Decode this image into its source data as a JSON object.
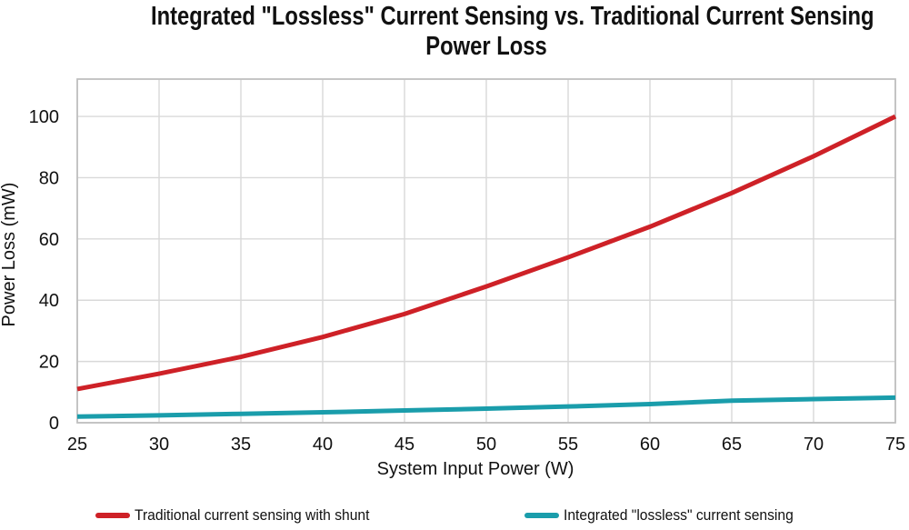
{
  "header": {
    "title_line1": "Integrated \"Lossless\" Current Sensing vs. Traditional Current Sensing",
    "title_line2": "Power Loss"
  },
  "chart_data": {
    "type": "line",
    "title": "Integrated \"Lossless\" Current Sensing vs. Traditional Current Sensing Power Loss",
    "xlabel": "System Input Power (W)",
    "ylabel": "Power Loss (mW)",
    "x": [
      25,
      30,
      35,
      40,
      45,
      50,
      55,
      60,
      65,
      70,
      75
    ],
    "series": [
      {
        "name": "Traditional current sensing with shunt",
        "color": "#ce2127",
        "values": [
          11,
          16,
          21.5,
          28,
          35.5,
          44.5,
          54,
          64,
          75,
          87,
          100
        ]
      },
      {
        "name": "Integrated \"lossless\" current sensing",
        "color": "#1a9dab",
        "values": [
          2,
          2.4,
          2.9,
          3.4,
          4,
          4.6,
          5.3,
          6.1,
          7.2,
          7.7,
          8.2
        ]
      }
    ],
    "xlim": [
      25,
      75
    ],
    "ylim": [
      0,
      110
    ],
    "xticks": [
      25,
      30,
      35,
      40,
      45,
      50,
      55,
      60,
      65,
      70,
      75
    ],
    "yticks": [
      0,
      20,
      40,
      60,
      80,
      100
    ],
    "grid": true,
    "legend_position": "bottom",
    "colors": {
      "grid": "#d9d9d9",
      "border": "#c0c0c0",
      "text": "#111111",
      "background": "#ffffff"
    }
  }
}
